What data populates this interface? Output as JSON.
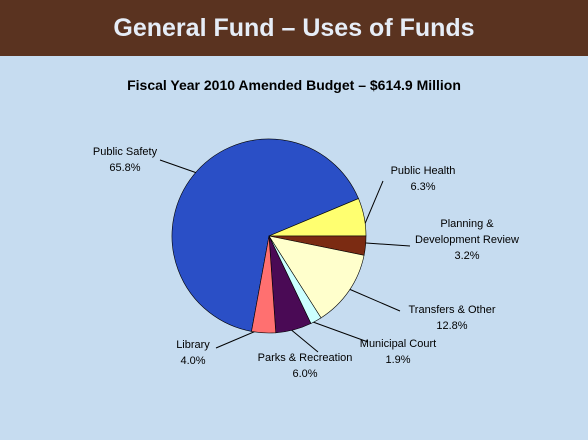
{
  "chart_data": {
    "type": "pie",
    "title": "General Fund – Uses of Funds",
    "subtitle": "Fiscal Year 2010 Amended Budget – $614.9 Million",
    "categories": [
      "Public Safety",
      "Public Health",
      "Planning & Development Review",
      "Transfers & Other",
      "Municipal Court",
      "Parks & Recreation",
      "Library"
    ],
    "values": [
      65.8,
      6.3,
      3.2,
      12.8,
      1.9,
      6.0,
      4.0
    ],
    "value_labels": [
      "65.8%",
      "6.3%",
      "3.2%",
      "12.8%",
      "1.9%",
      "6.0%",
      "4.0%"
    ],
    "colors": [
      "#2a4fc6",
      "#ffff70",
      "#7b2b12",
      "#ffffcc",
      "#ccffff",
      "#4a0a55",
      "#ff7070"
    ]
  }
}
